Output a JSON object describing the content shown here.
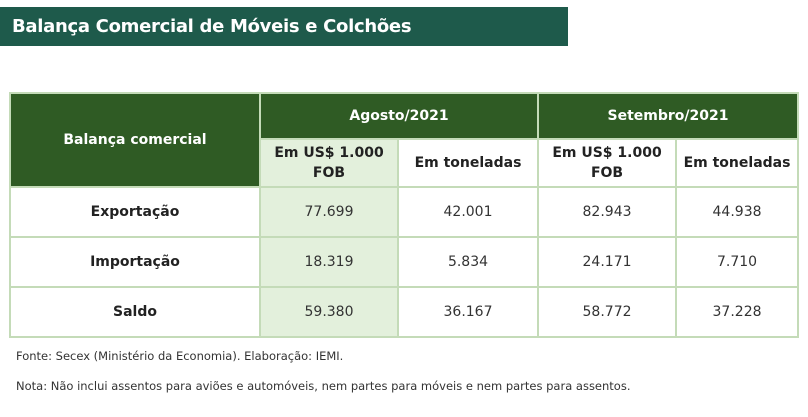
{
  "title": "Balança Comercial de Móveis e Colchões",
  "table": {
    "row_header": "Balança comercial",
    "periods": [
      "Agosto/2021",
      "Setembro/2021"
    ],
    "subheaders": [
      "Em US$ 1.000 FOB",
      "Em toneladas",
      "Em US$ 1.000 FOB",
      "Em toneladas"
    ],
    "rows": [
      {
        "label": "Exportação",
        "values": [
          "77.699",
          "42.001",
          "82.943",
          "44.938"
        ]
      },
      {
        "label": "Importação",
        "values": [
          "18.319",
          "5.834",
          "24.171",
          "7.710"
        ]
      },
      {
        "label": "Saldo",
        "values": [
          "59.380",
          "36.167",
          "58.772",
          "37.228"
        ]
      }
    ]
  },
  "source": "Fonte: Secex (Ministério da Economia). Elaboração: IEMI.",
  "note": "Nota: Não inclui assentos para aviões e automóveis, nem partes para móveis e nem partes para assentos.",
  "colors": {
    "title_bg": "#1e5a4b",
    "header_bg": "#2f5b24",
    "shade": "#e3f0dc",
    "border": "#c4dbb8"
  }
}
